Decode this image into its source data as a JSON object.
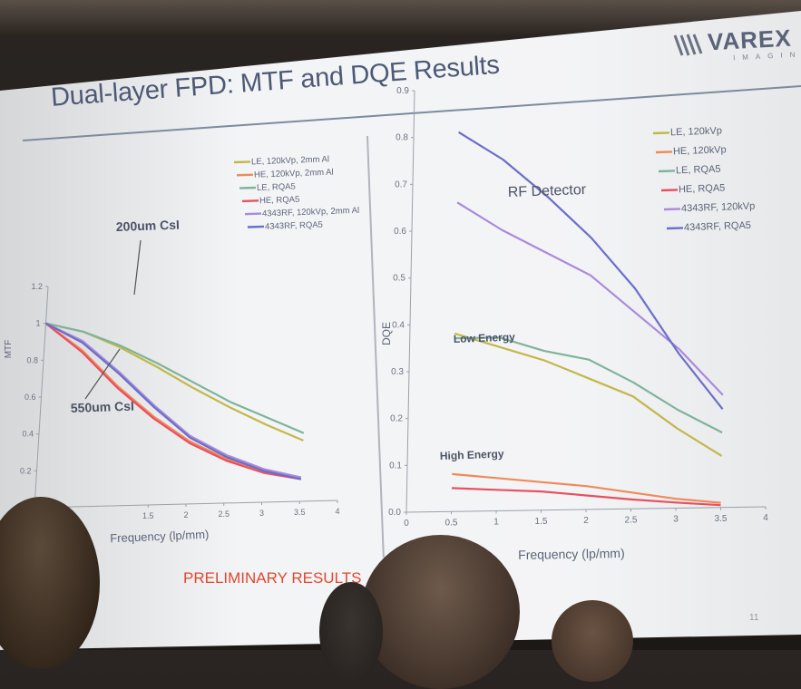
{
  "slide": {
    "title": "Dual-layer FPD: MTF and DQE Results",
    "logo": {
      "name": "VAREX",
      "sub": "IMAGING"
    },
    "footer": "PRELIMINARY RESULTS",
    "page_number": "11"
  },
  "chart_data": [
    {
      "type": "line",
      "title": "",
      "xlabel": "Frequency (lp/mm)",
      "ylabel": "MTF",
      "xlim": [
        0,
        4
      ],
      "ylim": [
        0,
        1.2
      ],
      "x_ticks": [
        "1.5",
        "2",
        "2.5",
        "3",
        "3.5",
        "4"
      ],
      "y_ticks": [
        "1.2",
        "1",
        "0.8",
        "0.6",
        "0.4",
        "0.2"
      ],
      "legend_placement": "top-right",
      "annotations": [
        {
          "text": "200um CsI"
        },
        {
          "text": "550um CsI"
        }
      ],
      "series": [
        {
          "name": "LE, 120kVp, 2mm Al",
          "color": "#c2b84a",
          "x": [
            0,
            0.5,
            1,
            1.5,
            2,
            2.5,
            3,
            3.5
          ],
          "y": [
            1.0,
            0.95,
            0.86,
            0.75,
            0.63,
            0.52,
            0.42,
            0.33
          ]
        },
        {
          "name": "HE, 120kVp, 2mm Al",
          "color": "#ef8a5a",
          "x": [
            0,
            0.5,
            1,
            1.5,
            2,
            2.5,
            3,
            3.5
          ],
          "y": [
            1.0,
            0.85,
            0.65,
            0.48,
            0.34,
            0.24,
            0.17,
            0.13
          ]
        },
        {
          "name": "LE, RQA5",
          "color": "#7fb39a",
          "x": [
            0,
            0.5,
            1,
            1.5,
            2,
            2.5,
            3,
            3.5
          ],
          "y": [
            1.0,
            0.95,
            0.87,
            0.77,
            0.66,
            0.55,
            0.46,
            0.37
          ]
        },
        {
          "name": "HE, RQA5",
          "color": "#e85060",
          "x": [
            0,
            0.5,
            1,
            1.5,
            2,
            2.5,
            3,
            3.5
          ],
          "y": [
            1.0,
            0.84,
            0.64,
            0.47,
            0.33,
            0.23,
            0.16,
            0.12
          ]
        },
        {
          "name": "4343RF, 120kVp, 2mm Al",
          "color": "#a98adc",
          "x": [
            0,
            0.5,
            1,
            1.5,
            2,
            2.5,
            3,
            3.5
          ],
          "y": [
            1.0,
            0.9,
            0.73,
            0.54,
            0.37,
            0.26,
            0.18,
            0.13
          ]
        },
        {
          "name": "4343RF, RQA5",
          "color": "#6a6fc8",
          "x": [
            0,
            0.5,
            1,
            1.5,
            2,
            2.5,
            3,
            3.5
          ],
          "y": [
            1.0,
            0.89,
            0.72,
            0.53,
            0.36,
            0.25,
            0.17,
            0.12
          ]
        }
      ]
    },
    {
      "type": "line",
      "title": "",
      "xlabel": "Frequency (lp/mm)",
      "ylabel": "DQE",
      "xlim": [
        0,
        4
      ],
      "ylim": [
        0,
        0.9
      ],
      "x_ticks": [
        "0",
        "0.5",
        "1",
        "1.5",
        "2",
        "2.5",
        "3",
        "3.5",
        "4"
      ],
      "y_ticks": [
        "0.9",
        "0.8",
        "0.7",
        "0.6",
        "0.5",
        "0.4",
        "0.3",
        "0.2",
        "0.1",
        "0.0"
      ],
      "legend_placement": "top-right",
      "annotations": [
        {
          "text": "RF Detector"
        },
        {
          "text": "Low Energy"
        },
        {
          "text": "High Energy"
        }
      ],
      "series": [
        {
          "name": "LE, 120kVp",
          "color": "#c2b84a",
          "x": [
            0.5,
            1,
            1.5,
            2,
            2.5,
            3,
            3.5
          ],
          "y": [
            0.38,
            0.35,
            0.32,
            0.28,
            0.24,
            0.17,
            0.11
          ]
        },
        {
          "name": "HE, 120kVp",
          "color": "#ef8a5a",
          "x": [
            0.5,
            1,
            1.5,
            2,
            2.5,
            3,
            3.5
          ],
          "y": [
            0.08,
            0.07,
            0.06,
            0.05,
            0.035,
            0.02,
            0.01
          ]
        },
        {
          "name": "LE, RQA5",
          "color": "#7fb39a",
          "x": [
            0.5,
            1,
            1.5,
            2,
            2.5,
            3,
            3.5
          ],
          "y": [
            0.37,
            0.37,
            0.34,
            0.32,
            0.27,
            0.21,
            0.16
          ]
        },
        {
          "name": "HE, RQA5",
          "color": "#e85060",
          "x": [
            0.5,
            1,
            1.5,
            2,
            2.5,
            3,
            3.5
          ],
          "y": [
            0.05,
            0.045,
            0.04,
            0.03,
            0.02,
            0.012,
            0.005
          ]
        },
        {
          "name": "4343RF, 120kVp",
          "color": "#a98adc",
          "x": [
            0.5,
            1,
            1.5,
            2,
            2.5,
            3,
            3.5
          ],
          "y": [
            0.66,
            0.6,
            0.55,
            0.5,
            0.42,
            0.34,
            0.24
          ]
        },
        {
          "name": "4343RF, RQA5",
          "color": "#6a6fc8",
          "x": [
            0.5,
            1,
            1.5,
            2,
            2.5,
            3,
            3.5
          ],
          "y": [
            0.81,
            0.75,
            0.67,
            0.58,
            0.47,
            0.33,
            0.21
          ]
        }
      ]
    }
  ]
}
